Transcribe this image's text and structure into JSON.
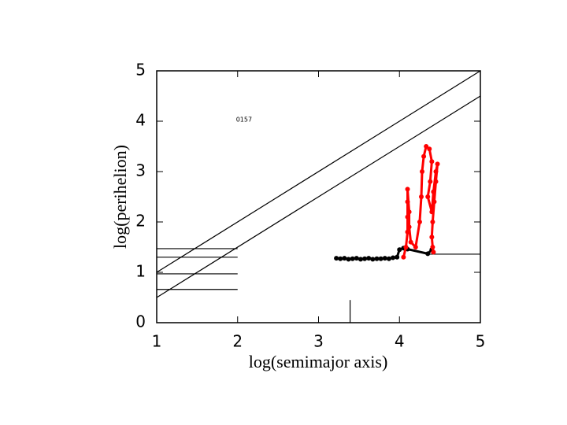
{
  "chart_data": {
    "type": "scatter",
    "xlabel": "log(semimajor axis)",
    "ylabel": "log(perihelion)",
    "xlim": [
      1,
      5
    ],
    "ylim": [
      0,
      5
    ],
    "xticks": [
      1,
      2,
      3,
      4,
      5
    ],
    "yticks": [
      0,
      1,
      2,
      3,
      4,
      5
    ],
    "annotations": [
      {
        "text": "0157",
        "x": 1.98,
        "y": 4.03
      }
    ],
    "reference_lines": [
      {
        "x": [
          1,
          5
        ],
        "y": [
          1,
          5
        ]
      },
      {
        "x": [
          1,
          5
        ],
        "y": [
          0.5,
          4.5
        ]
      },
      {
        "x": [
          1,
          2
        ],
        "y": [
          1.47,
          1.47
        ]
      },
      {
        "x": [
          1,
          2
        ],
        "y": [
          1.3,
          1.3
        ]
      },
      {
        "x": [
          1,
          2
        ],
        "y": [
          0.97,
          0.97
        ]
      },
      {
        "x": [
          1,
          2
        ],
        "y": [
          0.66,
          0.66
        ]
      },
      {
        "x": [
          3.39,
          3.39
        ],
        "y": [
          0,
          0.45
        ]
      },
      {
        "x": [
          4.37,
          5
        ],
        "y": [
          1.36,
          1.36
        ]
      }
    ],
    "series": [
      {
        "color": "#000000",
        "x": [
          3.22,
          3.27,
          3.32,
          3.37,
          3.42,
          3.47,
          3.52,
          3.57,
          3.62,
          3.67,
          3.72,
          3.77,
          3.82,
          3.87,
          3.92,
          3.97,
          4.0,
          4.05,
          4.1,
          4.35,
          4.4
        ],
        "y": [
          1.28,
          1.27,
          1.28,
          1.26,
          1.27,
          1.28,
          1.26,
          1.27,
          1.28,
          1.26,
          1.27,
          1.27,
          1.28,
          1.27,
          1.29,
          1.3,
          1.45,
          1.48,
          1.46,
          1.37,
          1.45
        ]
      },
      {
        "color": "#ff0000",
        "x": [
          4.05,
          4.08,
          4.1,
          4.1,
          4.1,
          4.1,
          4.12,
          4.12,
          4.14,
          4.2,
          4.25,
          4.27,
          4.28,
          4.3,
          4.33,
          4.37,
          4.4,
          4.38,
          4.35,
          4.4,
          4.42,
          4.45,
          4.47,
          4.45,
          4.43,
          4.41,
          4.4,
          4.41,
          4.42
        ],
        "y": [
          1.3,
          1.5,
          1.8,
          2.1,
          2.4,
          2.65,
          2.2,
          1.9,
          1.6,
          1.5,
          2.0,
          2.5,
          3.0,
          3.3,
          3.5,
          3.45,
          3.2,
          2.8,
          2.5,
          2.2,
          2.6,
          3.0,
          3.15,
          2.8,
          2.4,
          2.0,
          1.7,
          1.5,
          1.4
        ]
      }
    ]
  }
}
